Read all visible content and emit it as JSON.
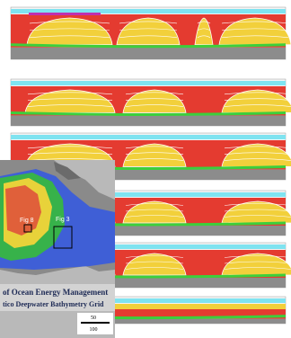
{
  "map": {
    "labels": [
      "Fig 8",
      "Fig 3"
    ],
    "title": "of Ocean Energy Management",
    "subtitle": "tico Deepwater Bathymetry Grid",
    "scale": [
      "50",
      "100"
    ]
  }
}
